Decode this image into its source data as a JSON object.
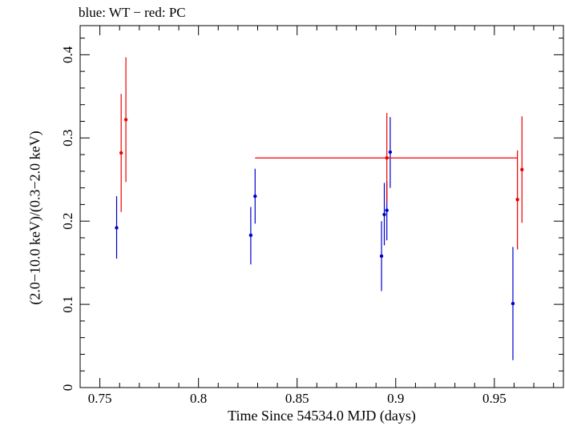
{
  "chart_data": {
    "type": "scatter",
    "title": "blue: WT − red: PC",
    "xlabel": "Time Since 54534.0 MJD (days)",
    "ylabel": "(2.0−10.0 keV)/(0.3−2.0 keV)",
    "xlim": [
      0.74,
      0.985
    ],
    "ylim": [
      0,
      0.435
    ],
    "x_ticks": [
      0.75,
      0.8,
      0.85,
      0.9,
      0.95
    ],
    "x_tick_labels": [
      "0.75",
      "0.8",
      "0.85",
      "0.9",
      "0.95"
    ],
    "y_ticks": [
      0,
      0.1,
      0.2,
      0.3,
      0.4
    ],
    "y_tick_labels": [
      "0",
      "0.1",
      "0.2",
      "0.3",
      "0.4"
    ],
    "grid": false,
    "series": [
      {
        "name": "WT",
        "color": "#0000cc",
        "points": [
          {
            "x": 0.7585,
            "y": 0.192,
            "ylo": 0.155,
            "yhi": 0.23
          },
          {
            "x": 0.8265,
            "y": 0.183,
            "ylo": 0.148,
            "yhi": 0.217
          },
          {
            "x": 0.8287,
            "y": 0.23,
            "ylo": 0.197,
            "yhi": 0.263
          },
          {
            "x": 0.8928,
            "y": 0.158,
            "ylo": 0.116,
            "yhi": 0.2
          },
          {
            "x": 0.8942,
            "y": 0.208,
            "ylo": 0.171,
            "yhi": 0.246
          },
          {
            "x": 0.8955,
            "y": 0.213,
            "ylo": 0.177,
            "yhi": 0.248
          },
          {
            "x": 0.8972,
            "y": 0.283,
            "ylo": 0.24,
            "yhi": 0.325
          },
          {
            "x": 0.9594,
            "y": 0.101,
            "ylo": 0.033,
            "yhi": 0.169
          }
        ]
      },
      {
        "name": "PC",
        "color": "#ee0000",
        "points": [
          {
            "x": 0.7608,
            "y": 0.282,
            "ylo": 0.211,
            "yhi": 0.353
          },
          {
            "x": 0.7632,
            "y": 0.322,
            "ylo": 0.247,
            "yhi": 0.397
          },
          {
            "x": 0.8955,
            "y": 0.276,
            "ylo": 0.222,
            "yhi": 0.33,
            "xlo": 0.8287,
            "xhi": 0.9617
          },
          {
            "x": 0.9617,
            "y": 0.226,
            "ylo": 0.166,
            "yhi": 0.285
          },
          {
            "x": 0.964,
            "y": 0.262,
            "ylo": 0.198,
            "yhi": 0.326
          }
        ]
      }
    ]
  }
}
